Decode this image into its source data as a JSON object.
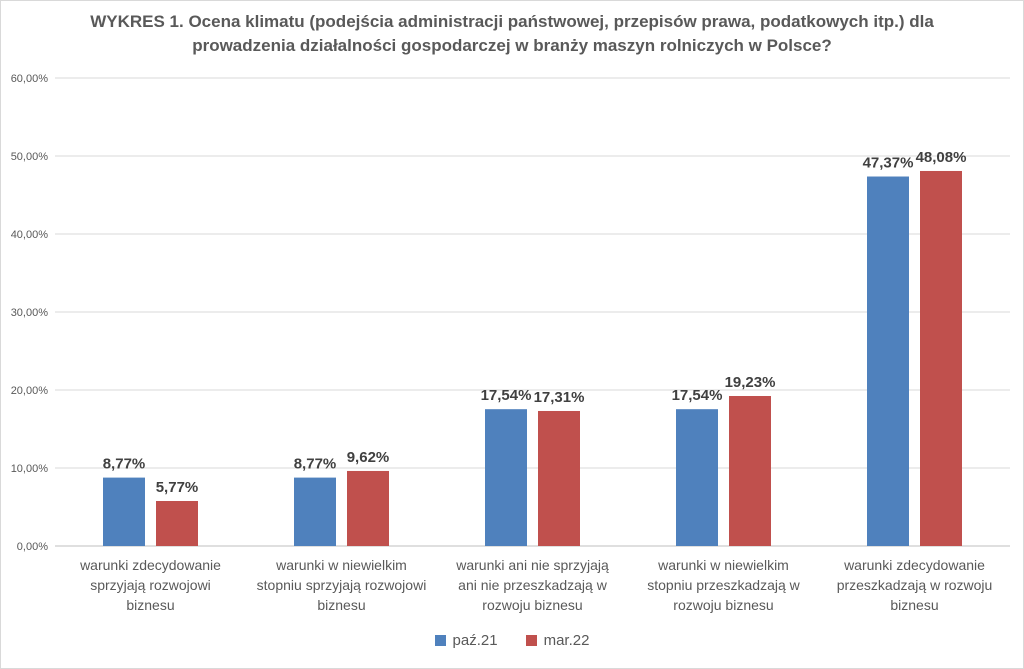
{
  "chart_data": {
    "type": "bar",
    "title": "WYKRES 1. Ocena klimatu (podejścia administracji państwowej, przepisów prawa, podatkowych itp.) dla prowadzenia działalności gospodarczej w branży maszyn rolniczych w Polsce?",
    "categories": [
      [
        "warunki zdecydowanie",
        "sprzyjają rozwojowi",
        "biznesu"
      ],
      [
        "warunki w niewielkim",
        "stopniu sprzyjają rozwojowi",
        "biznesu"
      ],
      [
        "warunki ani nie sprzyjają",
        "ani nie przeszkadzają w",
        "rozwoju biznesu"
      ],
      [
        "warunki w niewielkim",
        "stopniu przeszkadzają w",
        "rozwoju biznesu"
      ],
      [
        "warunki zdecydowanie",
        "przeszkadzają w rozwoju",
        "biznesu"
      ]
    ],
    "series": [
      {
        "name": "paź.21",
        "color": "#4f81bd",
        "values": [
          8.77,
          8.77,
          17.54,
          17.54,
          47.37
        ],
        "labels": [
          "8,77%",
          "8,77%",
          "17,54%",
          "17,54%",
          "47,37%"
        ]
      },
      {
        "name": "mar.22",
        "color": "#c0504d",
        "values": [
          5.77,
          9.62,
          17.31,
          19.23,
          48.08
        ],
        "labels": [
          "5,77%",
          "9,62%",
          "17,31%",
          "19,23%",
          "48,08%"
        ]
      }
    ],
    "ylim": [
      0,
      60
    ],
    "yticks": [
      0,
      10,
      20,
      30,
      40,
      50,
      60
    ],
    "ytick_labels": [
      "0,00%",
      "10,00%",
      "20,00%",
      "30,00%",
      "40,00%",
      "50,00%",
      "60,00%"
    ],
    "grid": true,
    "legend_position": "bottom"
  }
}
